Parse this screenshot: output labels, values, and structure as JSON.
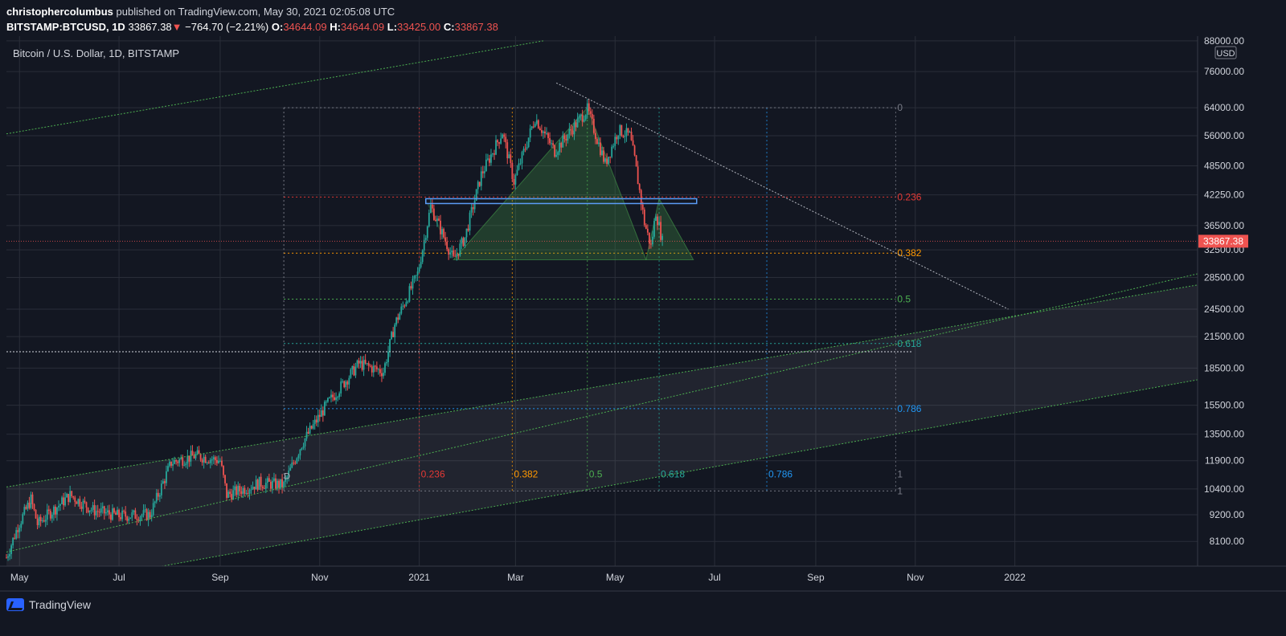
{
  "header": {
    "author": "christophercolumbus",
    "published_text": "published on TradingView.com, May 30, 2021 02:05:08 UTC",
    "symbol": "BITSTAMP:BTCUSD, 1D",
    "last": "33867.38",
    "change_arrow": "▼",
    "change": "−764.70 (−2.21%)",
    "o_label": "O:",
    "o": "34644.09",
    "h_label": "H:",
    "h": "34644.09",
    "l_label": "L:",
    "l": "33425.00",
    "c_label": "C:",
    "c": "33867.38"
  },
  "footer": {
    "brand": "TradingView",
    "logo_icon": "tradingview-logo-icon"
  },
  "chart_data": {
    "type": "candlestick",
    "title": "Bitcoin / U.S. Dollar, 1D, BITSTAMP",
    "currency": "USD",
    "scale": "log",
    "grid": true,
    "ylim": [
      7200,
      90000
    ],
    "xlim": [
      "2020-04-23",
      "2022-04-23"
    ],
    "x_ticks": [
      {
        "label": "May",
        "date": "2020-05-01"
      },
      {
        "label": "Jul",
        "date": "2020-07-01"
      },
      {
        "label": "Sep",
        "date": "2020-09-01"
      },
      {
        "label": "Nov",
        "date": "2020-11-01"
      },
      {
        "label": "2021",
        "date": "2021-01-01"
      },
      {
        "label": "Mar",
        "date": "2021-03-01"
      },
      {
        "label": "May",
        "date": "2021-05-01"
      },
      {
        "label": "Jul",
        "date": "2021-07-01"
      },
      {
        "label": "Sep",
        "date": "2021-09-01"
      },
      {
        "label": "Nov",
        "date": "2021-11-01"
      },
      {
        "label": "2022",
        "date": "2022-01-01"
      }
    ],
    "y_ticks": [
      {
        "value": 88000,
        "label": "88000.00"
      },
      {
        "value": 76000,
        "label": "76000.00"
      },
      {
        "value": 64000,
        "label": "64000.00"
      },
      {
        "value": 56000,
        "label": "56000.00"
      },
      {
        "value": 48500,
        "label": "48500.00"
      },
      {
        "value": 42250,
        "label": "42250.00"
      },
      {
        "value": 36500,
        "label": "36500.00"
      },
      {
        "value": 32500,
        "label": "32500.00"
      },
      {
        "value": 28500,
        "label": "28500.00"
      },
      {
        "value": 24500,
        "label": "24500.00"
      },
      {
        "value": 21500,
        "label": "21500.00"
      },
      {
        "value": 18500,
        "label": "18500.00"
      },
      {
        "value": 15500,
        "label": "15500.00"
      },
      {
        "value": 13500,
        "label": "13500.00"
      },
      {
        "value": 11900,
        "label": "11900.00"
      },
      {
        "value": 10400,
        "label": "10400.00"
      },
      {
        "value": 9200,
        "label": "9200.00"
      },
      {
        "value": 8100,
        "label": "8100.00"
      }
    ],
    "last_price": {
      "value": 33867.38,
      "label": "33867.38",
      "color": "#ef5350"
    },
    "colors": {
      "up": "#26a69a",
      "down": "#ef5350",
      "background": "#131722",
      "grid": "#2a2e39",
      "channel": "#4caf50"
    },
    "price_path": [
      {
        "date": "2020-04-23",
        "close": 7500
      },
      {
        "date": "2020-04-30",
        "close": 8700
      },
      {
        "date": "2020-05-08",
        "close": 9900
      },
      {
        "date": "2020-05-12",
        "close": 8800
      },
      {
        "date": "2020-06-01",
        "close": 10100
      },
      {
        "date": "2020-06-15",
        "close": 9400
      },
      {
        "date": "2020-07-01",
        "close": 9150
      },
      {
        "date": "2020-07-20",
        "close": 9200
      },
      {
        "date": "2020-08-02",
        "close": 11800
      },
      {
        "date": "2020-08-17",
        "close": 12200
      },
      {
        "date": "2020-09-01",
        "close": 11900
      },
      {
        "date": "2020-09-05",
        "close": 10100
      },
      {
        "date": "2020-09-25",
        "close": 10700
      },
      {
        "date": "2020-10-10",
        "close": 10600
      },
      {
        "date": "2020-10-21",
        "close": 12900
      },
      {
        "date": "2020-11-05",
        "close": 15500
      },
      {
        "date": "2020-11-25",
        "close": 18900
      },
      {
        "date": "2020-12-10",
        "close": 18200
      },
      {
        "date": "2020-12-17",
        "close": 22800
      },
      {
        "date": "2020-12-31",
        "close": 29000
      },
      {
        "date": "2021-01-08",
        "close": 40000
      },
      {
        "date": "2021-01-22",
        "close": 31000
      },
      {
        "date": "2021-01-29",
        "close": 34500
      },
      {
        "date": "2021-02-08",
        "close": 46500
      },
      {
        "date": "2021-02-21",
        "close": 57000
      },
      {
        "date": "2021-02-28",
        "close": 45000
      },
      {
        "date": "2021-03-13",
        "close": 61000
      },
      {
        "date": "2021-03-25",
        "close": 52000
      },
      {
        "date": "2021-04-14",
        "close": 63500
      },
      {
        "date": "2021-04-25",
        "close": 49000
      },
      {
        "date": "2021-05-03",
        "close": 57500
      },
      {
        "date": "2021-05-10",
        "close": 56000
      },
      {
        "date": "2021-05-13",
        "close": 50000
      },
      {
        "date": "2021-05-19",
        "close": 37000
      },
      {
        "date": "2021-05-23",
        "close": 33000
      },
      {
        "date": "2021-05-26",
        "close": 39000
      },
      {
        "date": "2021-05-30",
        "close": 33867
      }
    ],
    "fib_price_levels": [
      {
        "label": "0",
        "value": 64000,
        "color": "#787b86"
      },
      {
        "label": "0.236",
        "value": 41800,
        "color": "#e53935"
      },
      {
        "label": "0.382",
        "value": 32000,
        "color": "#ff9800"
      },
      {
        "label": "0.5",
        "value": 25700,
        "color": "#4caf50"
      },
      {
        "label": "0.618",
        "value": 20800,
        "color": "#26a69a"
      },
      {
        "label": "0.786",
        "value": 15250,
        "color": "#2196f3"
      },
      {
        "label": "1",
        "value": 10300,
        "color": "#787b86"
      }
    ],
    "fib_time_zones": [
      {
        "label": "0.236",
        "date": "2021-01-01",
        "color": "#e53935"
      },
      {
        "label": "0.382",
        "date": "2021-02-27",
        "color": "#ff9800"
      },
      {
        "label": "0.5",
        "date": "2021-04-14",
        "color": "#4caf50"
      },
      {
        "label": "0.618",
        "date": "2021-05-28",
        "color": "#26a69a"
      },
      {
        "label": "0.786",
        "date": "2021-08-02",
        "color": "#2196f3"
      },
      {
        "label": "1",
        "date": "2021-10-20",
        "color": "#787b86"
      }
    ],
    "pattern": {
      "name": "head-and-shoulders",
      "neckline": 41500,
      "fill": "#4caf50"
    },
    "trendlines": [
      {
        "name": "descending resistance",
        "from": {
          "date": "2021-03-26",
          "value": 72000
        },
        "to": {
          "date": "2021-12-28",
          "value": 24500
        },
        "color": "#b2b5be"
      },
      {
        "name": "upper channel",
        "from": {
          "date": "2020-04-23",
          "value": 56500
        },
        "to": {
          "date": "2021-03-18",
          "value": 88000
        },
        "color": "#4caf50"
      },
      {
        "name": "channel top",
        "from": {
          "date": "2020-04-23",
          "value": 10500
        },
        "to": {
          "date": "2022-04-23",
          "value": 27500
        },
        "color": "#4caf50"
      },
      {
        "name": "channel bottom",
        "from": {
          "date": "2020-04-23",
          "value": 6300
        },
        "to": {
          "date": "2022-04-23",
          "value": 17500
        },
        "color": "#4caf50"
      },
      {
        "name": "support",
        "from": {
          "date": "2020-04-23",
          "value": 7700
        },
        "to": {
          "date": "2022-04-23",
          "value": 29000
        },
        "color": "#4caf50"
      }
    ],
    "horizontal_lines": [
      {
        "name": "neckline",
        "value": 41000,
        "color": "#5b9cf6"
      },
      {
        "name": "prior high",
        "value": 20000,
        "color": "#d1d4dc"
      }
    ],
    "annotations": [
      {
        "text": "D",
        "date": "2020-10-10",
        "value": 10900
      }
    ]
  }
}
